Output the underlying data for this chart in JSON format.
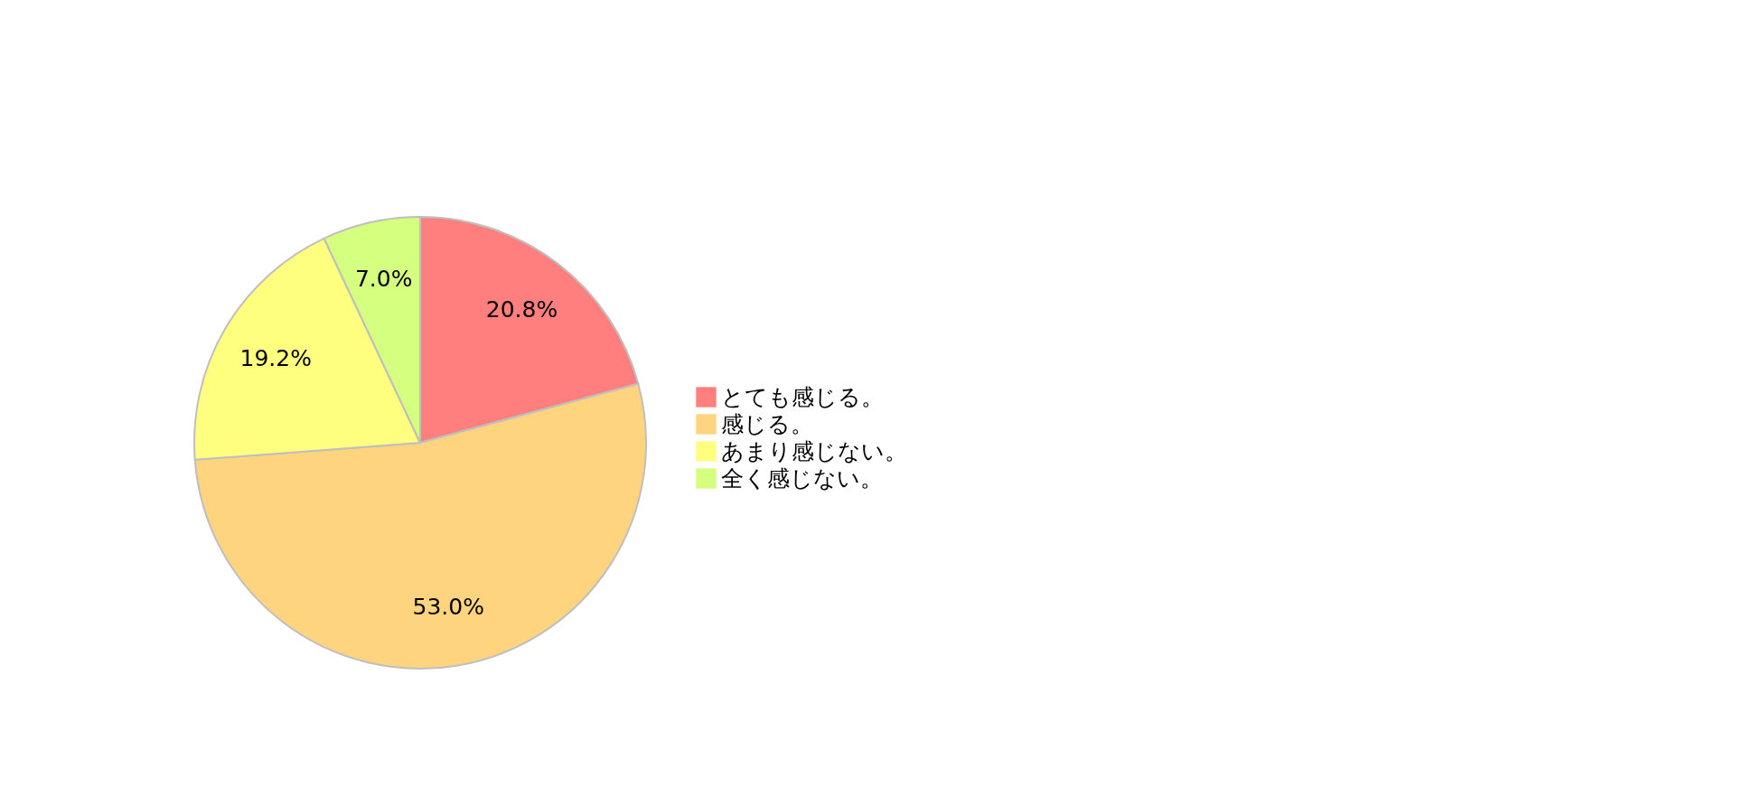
{
  "chart_data": {
    "type": "pie",
    "categories": [
      "とても感じる。",
      "感じる。",
      "あまり感じない。",
      "全く感じない。"
    ],
    "values": [
      20.8,
      53.0,
      19.2,
      7.0
    ],
    "colors": [
      "#ff7f7f",
      "#ffd47f",
      "#ffff7f",
      "#d4ff7f"
    ],
    "value_labels": [
      "20.8%",
      "53.0%",
      "19.2%",
      "7.0%"
    ],
    "legend": "right"
  }
}
